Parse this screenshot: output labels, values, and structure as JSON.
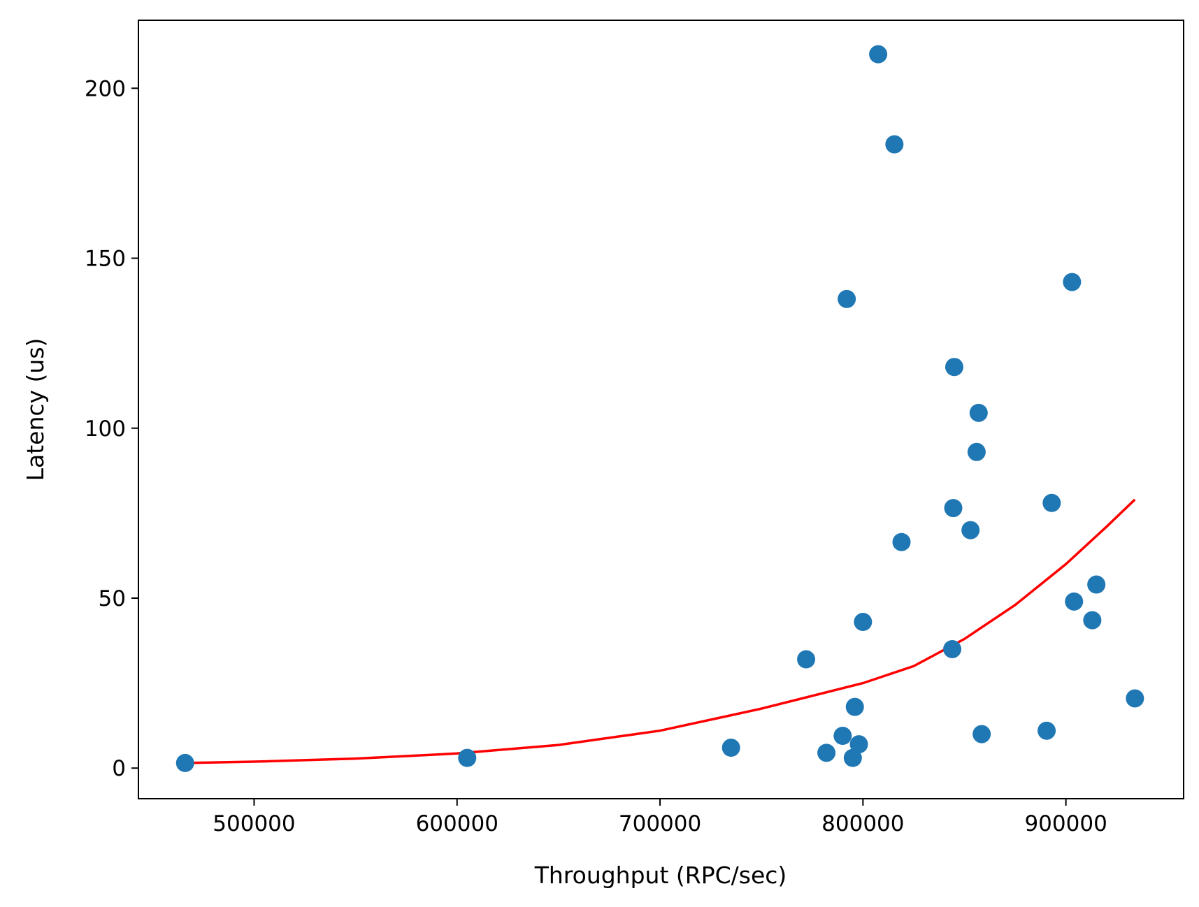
{
  "chart_data": {
    "type": "scatter",
    "title": "",
    "xlabel": "Throughput (RPC/sec)",
    "ylabel": "Latency (us)",
    "xlim": [
      443000,
      958000
    ],
    "ylim": [
      -9,
      220
    ],
    "xticks": [
      500000,
      600000,
      700000,
      800000,
      900000
    ],
    "yticks": [
      0,
      50,
      100,
      150,
      200
    ],
    "grid": false,
    "legend": "none",
    "series": [
      {
        "type": "scatter",
        "color": "#1f77b4",
        "points": [
          {
            "x": 466000,
            "y": 1.5
          },
          {
            "x": 605000,
            "y": 3
          },
          {
            "x": 735000,
            "y": 6
          },
          {
            "x": 772000,
            "y": 32
          },
          {
            "x": 782000,
            "y": 4.5
          },
          {
            "x": 790000,
            "y": 9.5
          },
          {
            "x": 792000,
            "y": 138
          },
          {
            "x": 795000,
            "y": 3
          },
          {
            "x": 796000,
            "y": 18
          },
          {
            "x": 798000,
            "y": 7
          },
          {
            "x": 800000,
            "y": 43
          },
          {
            "x": 807500,
            "y": 210
          },
          {
            "x": 815500,
            "y": 183.5
          },
          {
            "x": 819000,
            "y": 66.5
          },
          {
            "x": 844000,
            "y": 35
          },
          {
            "x": 844500,
            "y": 76.5
          },
          {
            "x": 845000,
            "y": 118
          },
          {
            "x": 853000,
            "y": 70
          },
          {
            "x": 856000,
            "y": 93
          },
          {
            "x": 857000,
            "y": 104.5
          },
          {
            "x": 858500,
            "y": 10
          },
          {
            "x": 890500,
            "y": 11
          },
          {
            "x": 893000,
            "y": 78
          },
          {
            "x": 903000,
            "y": 143
          },
          {
            "x": 904000,
            "y": 49
          },
          {
            "x": 913000,
            "y": 43.5
          },
          {
            "x": 915000,
            "y": 54
          },
          {
            "x": 934000,
            "y": 20.5
          }
        ]
      },
      {
        "type": "line",
        "color": "#ff0000",
        "points": [
          {
            "x": 467000,
            "y": 1.5
          },
          {
            "x": 500000,
            "y": 1.9
          },
          {
            "x": 550000,
            "y": 2.8
          },
          {
            "x": 600000,
            "y": 4.3
          },
          {
            "x": 650000,
            "y": 6.8
          },
          {
            "x": 700000,
            "y": 11
          },
          {
            "x": 750000,
            "y": 17.5
          },
          {
            "x": 800000,
            "y": 25
          },
          {
            "x": 825000,
            "y": 30
          },
          {
            "x": 850000,
            "y": 38
          },
          {
            "x": 875000,
            "y": 48
          },
          {
            "x": 900000,
            "y": 60
          },
          {
            "x": 920000,
            "y": 71
          },
          {
            "x": 934000,
            "y": 79
          }
        ]
      }
    ]
  }
}
